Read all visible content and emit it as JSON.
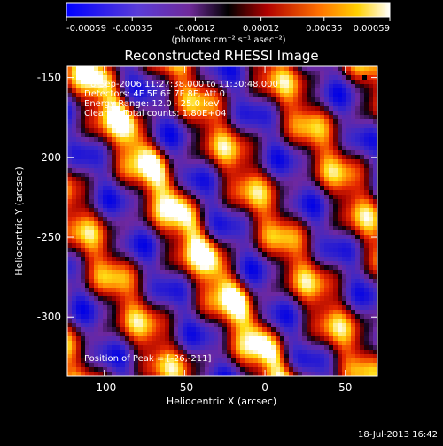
{
  "chart_data": {
    "type": "heatmap",
    "title": "Reconstructed RHESSI Image",
    "xlabel": "Heliocentric X (arcsec)",
    "ylabel": "Heliocentric Y (arcsec)",
    "xlim": [
      -123,
      70
    ],
    "ylim": [
      -337,
      -143
    ],
    "x_ticks": [
      -100,
      -50,
      0,
      50
    ],
    "y_ticks": [
      -150,
      -200,
      -250,
      -300
    ],
    "x_tick_labels": [
      "-100",
      "-50",
      "0",
      "50"
    ],
    "y_tick_labels": [
      "-150",
      "-200",
      "-250",
      "-300"
    ],
    "colorbar": {
      "range": [
        -0.00059,
        0.00059
      ],
      "ticks": [
        -0.00059,
        -0.00035,
        -0.00012,
        0.00012,
        0.00035,
        0.00059
      ],
      "tick_labels": [
        "-0.00059",
        "-0.00035",
        "-0.00012",
        "0.00012",
        "0.00035",
        "0.00059"
      ],
      "unit_label": "(photons cm⁻² s⁻¹ asec⁻²)",
      "colors": [
        "#0000ff",
        "#7a2fb5",
        "#000000",
        "#d80000",
        "#ff8000",
        "#ffffff"
      ]
    },
    "annotations": [
      "8-Sep-2006 11:27:38.000 to 11:30:48.000",
      "Detectors: 4F 5F 6F 7F 8F, Att 0",
      "Energy Range: 12.0 - 25.0 keV",
      "Clean     Total counts: 1.80E+04",
      "Position of Peak = [-26,-211]"
    ],
    "peak_position": [
      -26,
      -211
    ],
    "footer_date": "18-Jul-2013 16:42"
  }
}
